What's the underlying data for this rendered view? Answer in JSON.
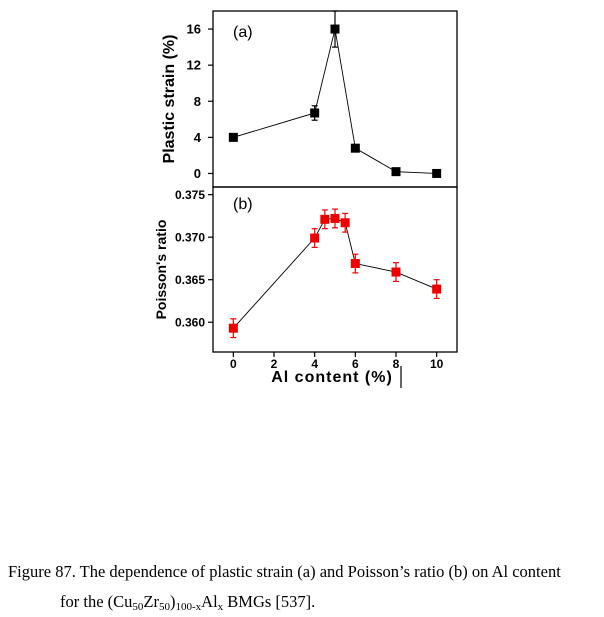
{
  "chart_data": [
    {
      "type": "line",
      "panel_label": "(a)",
      "ylabel": "Plastic strain (%)",
      "xlim": [
        -1,
        11
      ],
      "ylim": [
        -1.5,
        18
      ],
      "yticks": [
        "0",
        "4",
        "8",
        "12",
        "16"
      ],
      "x": [
        0,
        4,
        5,
        6,
        8,
        10
      ],
      "y": [
        4.0,
        6.7,
        16.0,
        2.8,
        0.2,
        0.0
      ],
      "yerr": [
        0.3,
        0.8,
        2.0,
        0,
        0,
        0
      ],
      "color": "#000000",
      "marker": "square"
    },
    {
      "type": "line",
      "panel_label": "(b)",
      "ylabel": "Poisson's ratio",
      "xlabel": "Al content (%)",
      "xlim": [
        -1,
        11
      ],
      "ylim": [
        0.3565,
        0.3759
      ],
      "xticks": [
        "0",
        "2",
        "4",
        "6",
        "8",
        "10"
      ],
      "yticks": [
        "0.360",
        "0.365",
        "0.370",
        "0.375"
      ],
      "x": [
        0,
        4,
        4.5,
        5,
        5.5,
        6,
        8,
        10
      ],
      "y": [
        0.3593,
        0.3699,
        0.3721,
        0.3722,
        0.3717,
        0.3669,
        0.3659,
        0.3639
      ],
      "yerr": [
        0.0011,
        0.0011,
        0.0011,
        0.0011,
        0.0011,
        0.0011,
        0.0011,
        0.0011
      ],
      "color": "#ee0000",
      "marker": "square"
    }
  ],
  "caption": {
    "line1": "Figure 87. The dependence of plastic strain (a) and Poisson’s ratio (b) on Al content",
    "line2_prefix": "for the (Cu",
    "sub1": "50",
    "zr": "Zr",
    "sub2": "50",
    "paren": ")",
    "sub3": "100-x",
    "al": "Al",
    "sub4": "x",
    "line2_suffix": " BMGs [537]."
  }
}
